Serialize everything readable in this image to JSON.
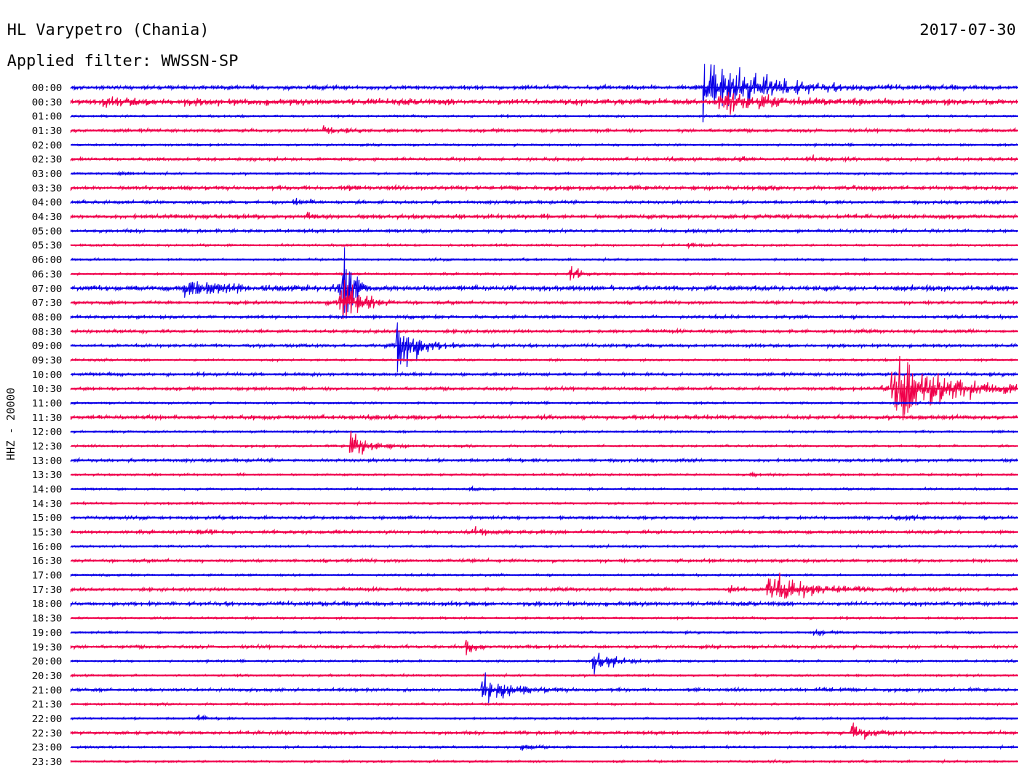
{
  "header": {
    "station": "HL Varypetro (Chania)",
    "date": "2017-07-30",
    "filter_label": "Applied filter:",
    "filter_value": "WWSSN-SP",
    "channel": "HHZ - 20000"
  },
  "colors": {
    "even": "#0a00e8",
    "odd": "#f0004a"
  },
  "chart_data": {
    "type": "line",
    "title": "HL Varypetro (Chania)",
    "ylabel": "HHZ - 20000",
    "time_labels": [
      "00:00",
      "00:30",
      "01:00",
      "01:30",
      "02:00",
      "02:30",
      "03:00",
      "03:30",
      "04:00",
      "04:30",
      "05:00",
      "05:30",
      "06:00",
      "06:30",
      "07:00",
      "07:30",
      "08:00",
      "08:30",
      "09:00",
      "09:30",
      "10:00",
      "10:30",
      "11:00",
      "11:30",
      "12:00",
      "12:30",
      "13:00",
      "13:30",
      "14:00",
      "14:30",
      "15:00",
      "15:30",
      "16:00",
      "16:30",
      "17:00",
      "17:30",
      "18:00",
      "18:30",
      "19:00",
      "19:30",
      "20:00",
      "20:30",
      "21:00",
      "21:30",
      "22:00",
      "22:30",
      "23:00",
      "23:30"
    ],
    "line_minutes": 30,
    "noise": [
      2,
      3,
      1,
      1.5,
      1,
      1.5,
      1,
      2,
      1.5,
      2,
      1.5,
      1,
      1,
      1,
      2.5,
      1.5,
      1.5,
      1.5,
      1.5,
      1,
      1.5,
      1.5,
      1,
      2,
      1,
      1,
      1.5,
      1,
      1,
      1,
      1.5,
      1.5,
      1,
      1.5,
      1,
      1.5,
      2,
      1,
      1,
      1.5,
      1,
      1,
      1.5,
      1,
      1,
      1.5,
      1,
      1
    ],
    "events": [
      {
        "line": 0,
        "minute": 20.0,
        "amplitude": 28,
        "duration_minutes": 4.5
      },
      {
        "line": 1,
        "minute": 20.5,
        "amplitude": 12,
        "duration_minutes": 3.5
      },
      {
        "line": 1,
        "minute": 1.0,
        "amplitude": 2,
        "duration_minutes": 5.0
      },
      {
        "line": 3,
        "minute": 8.0,
        "amplitude": 4,
        "duration_minutes": 1.0
      },
      {
        "line": 5,
        "minute": 23.3,
        "amplitude": 4,
        "duration_minutes": 1.2
      },
      {
        "line": 5,
        "minute": 21.0,
        "amplitude": 2,
        "duration_minutes": 1.5
      },
      {
        "line": 6,
        "minute": 1.5,
        "amplitude": 3,
        "duration_minutes": 1.0
      },
      {
        "line": 7,
        "minute": 8.5,
        "amplitude": 3,
        "duration_minutes": 0.5
      },
      {
        "line": 8,
        "minute": 7.0,
        "amplitude": 3,
        "duration_minutes": 1.5
      },
      {
        "line": 9,
        "minute": 7.5,
        "amplitude": 3,
        "duration_minutes": 1.0
      },
      {
        "line": 11,
        "minute": 19.5,
        "amplitude": 3,
        "duration_minutes": 1.2
      },
      {
        "line": 13,
        "minute": 15.8,
        "amplitude": 10,
        "duration_minutes": 0.6
      },
      {
        "line": 14,
        "minute": 3.5,
        "amplitude": 8,
        "duration_minutes": 3.5
      },
      {
        "line": 14,
        "minute": 8.6,
        "amplitude": 90,
        "duration_minutes": 0.6
      },
      {
        "line": 15,
        "minute": 8.5,
        "amplitude": 24,
        "duration_minutes": 1.5
      },
      {
        "line": 18,
        "minute": 10.3,
        "amplitude": 38,
        "duration_minutes": 1.5
      },
      {
        "line": 21,
        "minute": 26.0,
        "amplitude": 40,
        "duration_minutes": 4.0
      },
      {
        "line": 25,
        "minute": 8.8,
        "amplitude": 18,
        "duration_minutes": 1.5
      },
      {
        "line": 27,
        "minute": 21.5,
        "amplitude": 5,
        "duration_minutes": 0.4
      },
      {
        "line": 28,
        "minute": 12.6,
        "amplitude": 3,
        "duration_minutes": 0.6
      },
      {
        "line": 30,
        "minute": 26.0,
        "amplitude": 3,
        "duration_minutes": 1.5
      },
      {
        "line": 31,
        "minute": 4.0,
        "amplitude": 4,
        "duration_minutes": 1.2
      },
      {
        "line": 31,
        "minute": 12.5,
        "amplitude": 4,
        "duration_minutes": 2.0
      },
      {
        "line": 35,
        "minute": 22.0,
        "amplitude": 16,
        "duration_minutes": 3.5
      },
      {
        "line": 35,
        "minute": 20.8,
        "amplitude": 8,
        "duration_minutes": 0.6
      },
      {
        "line": 38,
        "minute": 23.5,
        "amplitude": 3,
        "duration_minutes": 0.8
      },
      {
        "line": 39,
        "minute": 12.5,
        "amplitude": 10,
        "duration_minutes": 0.6
      },
      {
        "line": 40,
        "minute": 16.5,
        "amplitude": 9,
        "duration_minutes": 2.0
      },
      {
        "line": 42,
        "minute": 13.0,
        "amplitude": 12,
        "duration_minutes": 2.5
      },
      {
        "line": 42,
        "minute": 23.7,
        "amplitude": 3,
        "duration_minutes": 1.0
      },
      {
        "line": 44,
        "minute": 4.0,
        "amplitude": 3,
        "duration_minutes": 0.6
      },
      {
        "line": 45,
        "minute": 24.7,
        "amplitude": 10,
        "duration_minutes": 1.5
      },
      {
        "line": 46,
        "minute": 14.2,
        "amplitude": 5,
        "duration_minutes": 0.8
      }
    ]
  }
}
